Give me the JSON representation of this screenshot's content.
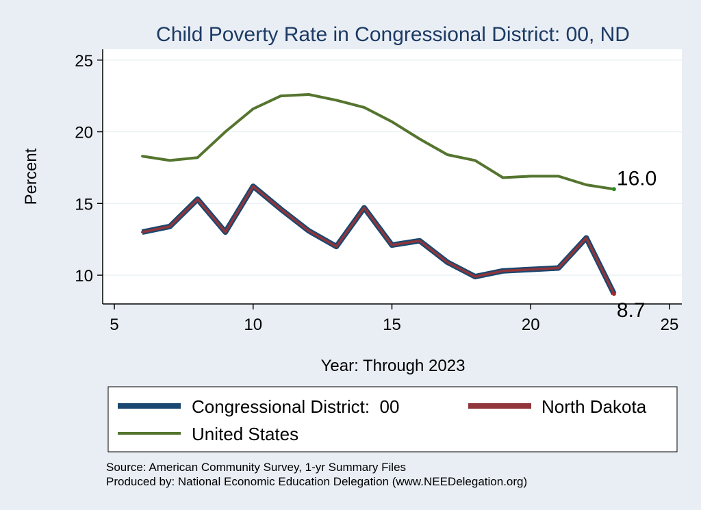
{
  "chart_data": {
    "type": "line",
    "title": "Child Poverty Rate in Congressional District:  00, ND",
    "xlabel": "Year: Through 2023",
    "ylabel": "Percent",
    "xlim": [
      5,
      25
    ],
    "ylim": [
      8,
      25.6
    ],
    "xticks": [
      5,
      10,
      15,
      20,
      25
    ],
    "yticks": [
      10,
      15,
      20,
      25
    ],
    "grid": true,
    "legend_position": "bottom",
    "x": [
      6,
      7,
      8,
      9,
      10,
      11,
      12,
      13,
      14,
      15,
      16,
      17,
      18,
      19,
      20,
      21,
      22,
      23
    ],
    "series": [
      {
        "name": "Congressional District:  00",
        "color": "#1a476f",
        "values": [
          13.0,
          13.4,
          15.3,
          13.0,
          16.2,
          14.6,
          13.1,
          12.0,
          14.7,
          12.1,
          12.4,
          10.9,
          9.9,
          10.3,
          10.4,
          10.5,
          12.6,
          8.7
        ]
      },
      {
        "name": "North Dakota",
        "color": "#90353b",
        "values": [
          13.0,
          13.4,
          15.3,
          13.0,
          16.2,
          14.6,
          13.1,
          12.0,
          14.7,
          12.1,
          12.4,
          10.9,
          9.9,
          10.3,
          10.4,
          10.5,
          12.6,
          8.7
        ]
      },
      {
        "name": "United States",
        "color": "#55752f",
        "values": [
          18.3,
          18.0,
          18.2,
          20.0,
          21.6,
          22.5,
          22.6,
          22.2,
          21.7,
          20.7,
          19.5,
          18.4,
          18.0,
          16.8,
          16.9,
          16.9,
          16.3,
          16.0
        ]
      }
    ],
    "annotations": [
      {
        "text": "16.0",
        "series": "United States"
      },
      {
        "text": "8.7",
        "series": "North Dakota"
      }
    ]
  },
  "footer": {
    "source": "Source: American Community Survey, 1-yr Summary Files",
    "produced": "Produced by: National Economic Education Delegation (www.NEEDelegation.org)"
  }
}
